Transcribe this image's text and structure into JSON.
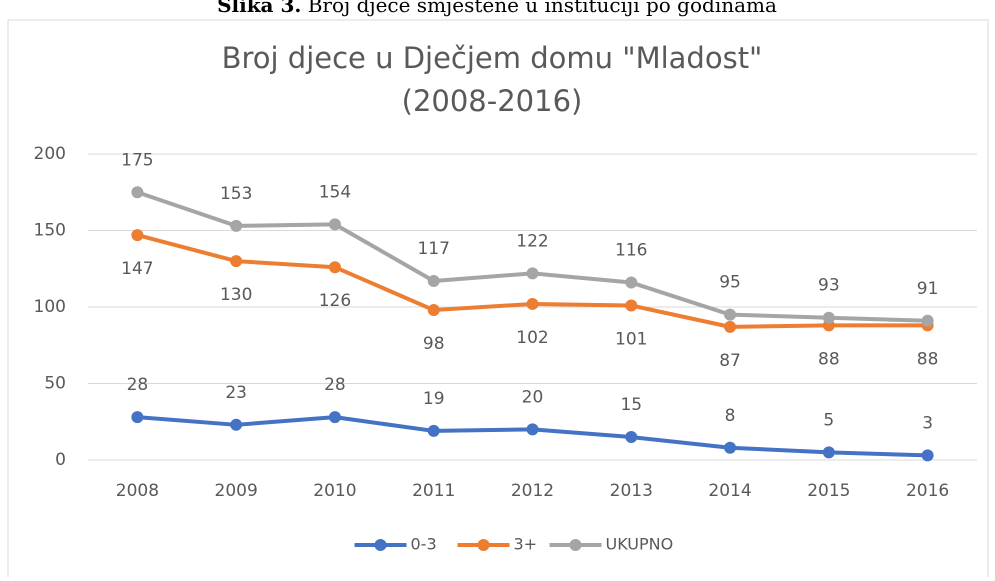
{
  "caption": {
    "label": "Slika 3.",
    "text": "Broj djece smještene u instituciji po godinama"
  },
  "chart_data": {
    "type": "line",
    "title": [
      "Broj djece u Dječjem domu \"Mladost\"",
      "(2008-2016)"
    ],
    "categories": [
      "2008",
      "2009",
      "2010",
      "2011",
      "2012",
      "2013",
      "2014",
      "2015",
      "2016"
    ],
    "series": [
      {
        "name": "0-3",
        "color": "#4472c4",
        "values": [
          28,
          23,
          28,
          19,
          20,
          15,
          8,
          5,
          3
        ]
      },
      {
        "name": "3+",
        "color": "#ed7d31",
        "values": [
          147,
          130,
          126,
          98,
          102,
          101,
          87,
          88,
          88
        ]
      },
      {
        "name": "UKUPNO",
        "color": "#a5a5a5",
        "values": [
          175,
          153,
          154,
          117,
          122,
          116,
          95,
          93,
          91
        ]
      }
    ],
    "ylim": [
      0,
      200
    ],
    "yticks": [
      0,
      50,
      100,
      150,
      200
    ],
    "grid": true,
    "legend": "bottom"
  }
}
